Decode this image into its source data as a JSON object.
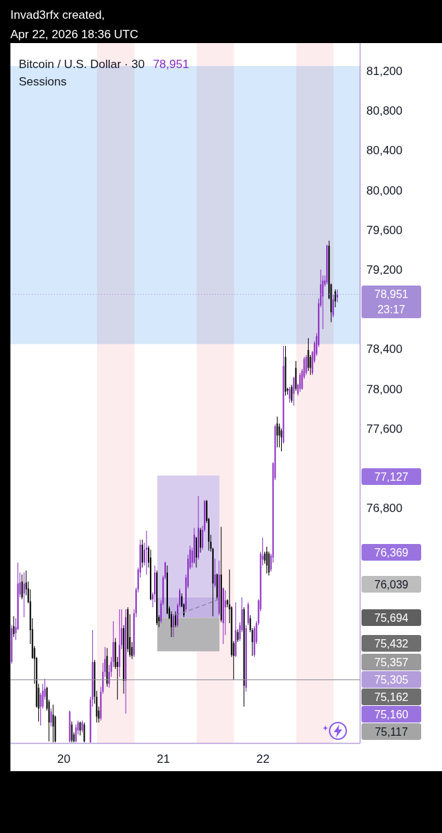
{
  "chart_data": {
    "type": "candlestick",
    "title": "Bitcoin / U.S. Dollar · 30",
    "subtitle": "Sessions",
    "annotations": [
      "Invad3rfx created,",
      "Apr 22, 2026 18:36 UTC",
      "78,951",
      "77,127",
      "76,369",
      "76,039",
      "75,694",
      "75,432",
      "75,357",
      "75,305",
      "75,162",
      "75,160",
      "75,117"
    ],
    "x": [
      "2026-04-19T11:30",
      "2026-04-19T12:00",
      "2026-04-19T12:30",
      "2026-04-19T13:00",
      "2026-04-19T13:30",
      "2026-04-19T14:00",
      "2026-04-19T14:30",
      "2026-04-19T15:00",
      "2026-04-19T15:30",
      "2026-04-19T16:00",
      "2026-04-19T16:30",
      "2026-04-19T17:00",
      "2026-04-19T17:30",
      "2026-04-19T18:00",
      "2026-04-19T18:30",
      "2026-04-19T19:00",
      "2026-04-19T19:30",
      "2026-04-19T20:00",
      "2026-04-19T20:30",
      "2026-04-19T21:00",
      "2026-04-19T21:30",
      "2026-04-19T22:00",
      "2026-04-20T01:30",
      "2026-04-20T02:00",
      "2026-04-20T02:30",
      "2026-04-20T03:00",
      "2026-04-20T03:30",
      "2026-04-20T04:00",
      "2026-04-20T04:30",
      "2026-04-20T05:00",
      "2026-04-20T06:30",
      "2026-04-20T07:00",
      "2026-04-20T07:30",
      "2026-04-20T08:00",
      "2026-04-20T08:30",
      "2026-04-20T09:00",
      "2026-04-20T09:30",
      "2026-04-20T10:00",
      "2026-04-20T10:30",
      "2026-04-20T11:00",
      "2026-04-20T11:30",
      "2026-04-20T12:00",
      "2026-04-20T12:30",
      "2026-04-20T13:00",
      "2026-04-20T13:30",
      "2026-04-20T14:00",
      "2026-04-20T14:30",
      "2026-04-20T15:00",
      "2026-04-20T15:30",
      "2026-04-20T16:00",
      "2026-04-20T16:30",
      "2026-04-20T17:00",
      "2026-04-20T17:30",
      "2026-04-20T18:00",
      "2026-04-20T18:30",
      "2026-04-20T19:00",
      "2026-04-20T19:30",
      "2026-04-20T20:00",
      "2026-04-20T20:30",
      "2026-04-20T21:00",
      "2026-04-20T21:30",
      "2026-04-20T22:00",
      "2026-04-20T22:30",
      "2026-04-20T23:00",
      "2026-04-20T23:30",
      "2026-04-21T00:00",
      "2026-04-21T00:30",
      "2026-04-21T01:00",
      "2026-04-21T01:30",
      "2026-04-21T02:00",
      "2026-04-21T02:30",
      "2026-04-21T03:00",
      "2026-04-21T03:30",
      "2026-04-21T04:00",
      "2026-04-21T04:30",
      "2026-04-21T05:00",
      "2026-04-21T05:30",
      "2026-04-21T06:00",
      "2026-04-21T06:30",
      "2026-04-21T07:00",
      "2026-04-21T07:30",
      "2026-04-21T08:00",
      "2026-04-21T08:30",
      "2026-04-21T09:00",
      "2026-04-21T09:30",
      "2026-04-21T10:00",
      "2026-04-21T10:30",
      "2026-04-21T11:00",
      "2026-04-21T11:30",
      "2026-04-21T12:00",
      "2026-04-21T12:30",
      "2026-04-21T13:00",
      "2026-04-21T13:30",
      "2026-04-21T14:00",
      "2026-04-21T14:30",
      "2026-04-21T15:00",
      "2026-04-21T15:30",
      "2026-04-21T16:00",
      "2026-04-21T16:30",
      "2026-04-21T17:00",
      "2026-04-21T17:30",
      "2026-04-21T18:00",
      "2026-04-21T18:30",
      "2026-04-21T19:00",
      "2026-04-21T19:30",
      "2026-04-21T20:00",
      "2026-04-21T20:30",
      "2026-04-21T21:00",
      "2026-04-21T21:30",
      "2026-04-21T22:00",
      "2026-04-21T22:30",
      "2026-04-21T23:00",
      "2026-04-21T23:30",
      "2026-04-22T00:00",
      "2026-04-22T00:30",
      "2026-04-22T01:00",
      "2026-04-22T01:30",
      "2026-04-22T02:00",
      "2026-04-22T02:30",
      "2026-04-22T03:00",
      "2026-04-22T03:30",
      "2026-04-22T04:00",
      "2026-04-22T04:30",
      "2026-04-22T05:00",
      "2026-04-22T05:30",
      "2026-04-22T06:00",
      "2026-04-22T06:30",
      "2026-04-22T07:00",
      "2026-04-22T07:30",
      "2026-04-22T08:00",
      "2026-04-22T08:30",
      "2026-04-22T09:00",
      "2026-04-22T09:30",
      "2026-04-22T10:00",
      "2026-04-22T10:30",
      "2026-04-22T11:00",
      "2026-04-22T11:30",
      "2026-04-22T12:00",
      "2026-04-22T12:30",
      "2026-04-22T13:00",
      "2026-04-22T13:30",
      "2026-04-22T14:00",
      "2026-04-22T14:30",
      "2026-04-22T15:00",
      "2026-04-22T15:30",
      "2026-04-22T16:00",
      "2026-04-22T16:30",
      "2026-04-22T17:00",
      "2026-04-22T17:30",
      "2026-04-22T18:00"
    ],
    "ohlc": [
      [
        75250,
        75620,
        75230,
        75590
      ],
      [
        75610,
        75710,
        75500,
        75530
      ],
      [
        75540,
        75690,
        75470,
        75600
      ],
      [
        75580,
        76250,
        75570,
        76040
      ],
      [
        75930,
        76150,
        75900,
        76050
      ],
      [
        76060,
        76130,
        75880,
        75900
      ],
      [
        75940,
        76150,
        75700,
        76040
      ],
      [
        76050,
        76170,
        75920,
        75980
      ],
      [
        75990,
        76060,
        75840,
        75850
      ],
      [
        75860,
        75980,
        75430,
        75570
      ],
      [
        75580,
        75690,
        75280,
        75290
      ],
      [
        75390,
        75410,
        75030,
        75280
      ],
      [
        75290,
        75300,
        74790,
        74800
      ],
      [
        74990,
        75030,
        74650,
        74780
      ],
      [
        74800,
        74940,
        74610,
        74920
      ],
      [
        74800,
        75030,
        74780,
        74960
      ],
      [
        74900,
        75080,
        74870,
        74980
      ],
      [
        74990,
        75000,
        74760,
        74780
      ],
      [
        74850,
        74870,
        74450,
        74640
      ],
      [
        74640,
        74780,
        74600,
        74750
      ],
      [
        74720,
        74820,
        74440,
        74600
      ],
      [
        74700,
        74710,
        74440,
        74450
      ],
      [
        74450,
        74760,
        74440,
        74750
      ],
      [
        74620,
        74650,
        74440,
        74460
      ],
      [
        74520,
        74540,
        74440,
        74450
      ],
      [
        74450,
        74620,
        74440,
        74590
      ],
      [
        74560,
        74660,
        74520,
        74640
      ],
      [
        74640,
        74650,
        74510,
        74560
      ],
      [
        74560,
        74660,
        74540,
        74640
      ],
      [
        74620,
        74640,
        74440,
        74450
      ],
      [
        74440,
        74900,
        74440,
        74870
      ],
      [
        74870,
        75570,
        74800,
        75250
      ],
      [
        75250,
        75270,
        74830,
        74900
      ],
      [
        74900,
        74960,
        74640,
        74700
      ],
      [
        74760,
        74800,
        74640,
        74680
      ],
      [
        74680,
        75000,
        74660,
        74950
      ],
      [
        74950,
        75240,
        74930,
        75150
      ],
      [
        75150,
        75400,
        75100,
        75280
      ],
      [
        75310,
        75390,
        75000,
        75030
      ],
      [
        75030,
        75220,
        74990,
        75150
      ],
      [
        75150,
        75300,
        75100,
        75250
      ],
      [
        75250,
        75660,
        75200,
        75450
      ],
      [
        75450,
        75490,
        75180,
        75200
      ],
      [
        75250,
        75300,
        74870,
        75200
      ],
      [
        75200,
        75780,
        75100,
        75420
      ],
      [
        75420,
        75780,
        75380,
        75590
      ],
      [
        75590,
        75620,
        74930,
        75060
      ],
      [
        75060,
        75780,
        74730,
        75700
      ],
      [
        75780,
        75800,
        75350,
        75380
      ],
      [
        75500,
        75730,
        75300,
        75320
      ],
      [
        75400,
        75450,
        75280,
        75310
      ],
      [
        75320,
        75780,
        75300,
        75740
      ],
      [
        75740,
        76000,
        75700,
        75980
      ],
      [
        75980,
        76200,
        75950,
        76180
      ],
      [
        76150,
        76480,
        76100,
        76430
      ],
      [
        76430,
        76480,
        76200,
        76250
      ],
      [
        76250,
        76450,
        76220,
        76380
      ],
      [
        76380,
        76570,
        76130,
        76400
      ],
      [
        76400,
        76420,
        76200,
        76250
      ],
      [
        76300,
        76380,
        75870,
        75880
      ],
      [
        75880,
        75950,
        75800,
        75930
      ],
      [
        75930,
        76220,
        75850,
        76150
      ],
      [
        76150,
        76170,
        75620,
        75640
      ],
      [
        75700,
        75720,
        75600,
        75660
      ],
      [
        75660,
        75870,
        75640,
        75840
      ],
      [
        75840,
        76120,
        75820,
        76100
      ],
      [
        76100,
        76260,
        76080,
        76250
      ],
      [
        76150,
        76220,
        75730,
        75740
      ],
      [
        75790,
        75810,
        75680,
        75690
      ],
      [
        75730,
        75760,
        75500,
        75600
      ],
      [
        75600,
        75730,
        75500,
        75710
      ],
      [
        75720,
        75760,
        75600,
        75620
      ],
      [
        75620,
        75840,
        75600,
        75820
      ],
      [
        75820,
        75990,
        75800,
        75970
      ],
      [
        75910,
        75940,
        75800,
        75810
      ],
      [
        75830,
        75840,
        75700,
        75720
      ],
      [
        75780,
        76130,
        75760,
        76100
      ],
      [
        76010,
        76330,
        75990,
        76290
      ],
      [
        76200,
        76420,
        76180,
        76380
      ],
      [
        76250,
        76400,
        76200,
        76370
      ],
      [
        76250,
        76600,
        76240,
        76530
      ],
      [
        76500,
        76510,
        76200,
        76300
      ],
      [
        76300,
        76920,
        76280,
        76600
      ],
      [
        76580,
        76600,
        76350,
        76400
      ],
      [
        76400,
        76620,
        76380,
        76580
      ],
      [
        76580,
        76880,
        76560,
        76870
      ],
      [
        76870,
        76880,
        76650,
        76670
      ],
      [
        76690,
        76700,
        76370,
        76460
      ],
      [
        76460,
        76530,
        76360,
        76390
      ],
      [
        76390,
        76400,
        75710,
        76040
      ],
      [
        76020,
        76290,
        76000,
        76130
      ],
      [
        76130,
        76140,
        75880,
        75900
      ],
      [
        75740,
        76270,
        75720,
        76130
      ],
      [
        76130,
        76610,
        75650,
        75670
      ],
      [
        75640,
        76000,
        75430,
        75990
      ],
      [
        75800,
        75970,
        75520,
        75870
      ],
      [
        75870,
        75880,
        75800,
        75830
      ],
      [
        75830,
        76180,
        75640,
        75780
      ],
      [
        75800,
        75810,
        75300,
        75320
      ],
      [
        75440,
        75460,
        75070,
        75310
      ],
      [
        75310,
        75850,
        75300,
        75570
      ],
      [
        75550,
        75580,
        75450,
        75470
      ],
      [
        75480,
        75650,
        75460,
        75620
      ],
      [
        75570,
        75900,
        75550,
        75780
      ],
      [
        75780,
        75800,
        74800,
        75010
      ],
      [
        74990,
        75620,
        74950,
        75590
      ],
      [
        75640,
        75850,
        75620,
        75830
      ],
      [
        75690,
        75720,
        75550,
        75570
      ],
      [
        75570,
        75590,
        75310,
        75450
      ],
      [
        75320,
        75610,
        75300,
        75590
      ],
      [
        75450,
        75660,
        75430,
        75640
      ],
      [
        75640,
        75880,
        75620,
        75870
      ],
      [
        75780,
        76360,
        75760,
        76340
      ],
      [
        76280,
        76500,
        76220,
        76320
      ],
      [
        76340,
        76360,
        76240,
        76270
      ],
      [
        76360,
        76410,
        76140,
        76220
      ],
      [
        76340,
        76360,
        76120,
        76150
      ],
      [
        76180,
        76340,
        76160,
        76320
      ],
      [
        76300,
        77260,
        76250,
        77250
      ],
      [
        77100,
        77640,
        77080,
        77620
      ],
      [
        77650,
        77720,
        77410,
        77530
      ],
      [
        77620,
        77650,
        77410,
        77530
      ],
      [
        77580,
        77600,
        77370,
        77510
      ],
      [
        77460,
        78430,
        77450,
        78230
      ],
      [
        78320,
        78430,
        77930,
        77970
      ],
      [
        78000,
        78010,
        77940,
        77980
      ],
      [
        77900,
        78020,
        77860,
        78000
      ],
      [
        78020,
        78040,
        77860,
        77880
      ],
      [
        77950,
        78120,
        77830,
        78110
      ],
      [
        78210,
        78280,
        77980,
        78000
      ],
      [
        77950,
        78050,
        77930,
        78040
      ],
      [
        78000,
        78160,
        77970,
        78140
      ],
      [
        78000,
        78200,
        77990,
        78180
      ],
      [
        78120,
        78320,
        78100,
        78300
      ],
      [
        78160,
        78340,
        78140,
        78320
      ],
      [
        78390,
        78510,
        78180,
        78210
      ],
      [
        78320,
        78340,
        78140,
        78210
      ],
      [
        78160,
        78380,
        78140,
        78370
      ],
      [
        78280,
        78480,
        78260,
        78460
      ],
      [
        78350,
        78560,
        78330,
        78530
      ],
      [
        78440,
        78910,
        78420,
        78860
      ],
      [
        78840,
        79200,
        78820,
        79050
      ],
      [
        78930,
        79140,
        78600,
        79090
      ],
      [
        79050,
        79140,
        79030,
        79090
      ],
      [
        79070,
        79450,
        79050,
        79440
      ],
      [
        79440,
        79490,
        78900,
        78910
      ],
      [
        79050,
        79060,
        78670,
        78770
      ],
      [
        78740,
        78950,
        78720,
        78900
      ],
      [
        78980,
        79000,
        78820,
        78880
      ],
      [
        78920,
        79000,
        78870,
        78951
      ]
    ],
    "colors": [
      "#8a2bc2",
      "#000000",
      "#8a2bc2",
      "#8a2bc2",
      "#8a2bc2",
      "#000000",
      "#8a2bc2",
      "#000000",
      "#000000",
      "#000000",
      "#000000",
      "#000000",
      "#000000",
      "#000000",
      "#8a2bc2",
      "#8a2bc2",
      "#8a2bc2",
      "#000000",
      "#000000",
      "#8a2bc2",
      "#000000",
      "#000000",
      "#8a2bc2",
      "#000000",
      "#000000",
      "#8a2bc2",
      "#8a2bc2",
      "#000000",
      "#8a2bc2",
      "#000000",
      "#8a2bc2",
      "#8a2bc2",
      "#000000",
      "#000000",
      "#000000",
      "#8a2bc2",
      "#8a2bc2",
      "#8a2bc2",
      "#000000",
      "#8a2bc2",
      "#8a2bc2",
      "#8a2bc2",
      "#000000",
      "#000000",
      "#8a2bc2",
      "#8a2bc2",
      "#000000",
      "#8a2bc2",
      "#000000",
      "#000000",
      "#000000",
      "#8a2bc2",
      "#8a2bc2",
      "#8a2bc2",
      "#8a2bc2",
      "#000000",
      "#8a2bc2",
      "#8a2bc2",
      "#000000",
      "#000000",
      "#8a2bc2",
      "#8a2bc2",
      "#000000",
      "#000000",
      "#8a2bc2",
      "#8a2bc2",
      "#8a2bc2",
      "#000000",
      "#000000",
      "#000000",
      "#8a2bc2",
      "#000000",
      "#8a2bc2",
      "#8a2bc2",
      "#000000",
      "#000000",
      "#8a2bc2",
      "#8a2bc2",
      "#8a2bc2",
      "#8a2bc2",
      "#8a2bc2",
      "#000000",
      "#8a2bc2",
      "#000000",
      "#8a2bc2",
      "#8a2bc2",
      "#000000",
      "#000000",
      "#000000",
      "#000000",
      "#8a2bc2",
      "#000000",
      "#8a2bc2",
      "#000000",
      "#8a2bc2",
      "#8a2bc2",
      "#000000",
      "#000000",
      "#000000",
      "#000000",
      "#8a2bc2",
      "#000000",
      "#8a2bc2",
      "#8a2bc2",
      "#000000",
      "#8a2bc2",
      "#8a2bc2",
      "#000000",
      "#000000",
      "#8a2bc2",
      "#8a2bc2",
      "#8a2bc2",
      "#8a2bc2",
      "#8a2bc2",
      "#000000",
      "#000000",
      "#000000",
      "#8a2bc2",
      "#8a2bc2",
      "#8a2bc2",
      "#000000",
      "#000000",
      "#000000",
      "#8a2bc2",
      "#000000",
      "#000000",
      "#8a2bc2",
      "#000000",
      "#8a2bc2",
      "#000000",
      "#8a2bc2",
      "#8a2bc2",
      "#8a2bc2",
      "#8a2bc2",
      "#8a2bc2",
      "#000000",
      "#000000",
      "#8a2bc2",
      "#8a2bc2",
      "#8a2bc2",
      "#8a2bc2",
      "#8a2bc2",
      "#8a2bc2",
      "#8a2bc2",
      "#8a2bc2",
      "#000000",
      "#000000",
      "#8a2bc2",
      "#000000",
      "#8a2bc2"
    ],
    "series": [
      {
        "type": "area",
        "color": "#d8ccee",
        "x": [
          "2026-04-20T22:30",
          "2026-04-21T13:30"
        ],
        "values": [
          null,
          null
        ],
        "lower": [
          75900,
          75900
        ],
        "upper": [
          77127,
          77127
        ]
      },
      {
        "type": "area",
        "color": "#c3b3e4",
        "x": [
          "2026-04-20T22:30",
          "2026-04-21T13:30"
        ],
        "values": [
          null,
          null
        ],
        "lower": [
          75694,
          75694
        ],
        "upper": [
          75900,
          75900
        ]
      },
      {
        "type": "area",
        "color": "#b4b4b6",
        "x": [
          "2026-04-20T22:30",
          "2026-04-21T13:30"
        ],
        "values": [
          null,
          null
        ],
        "lower": [
          75357,
          75357
        ],
        "upper": [
          75694,
          75694
        ]
      },
      {
        "type": "line",
        "color": "#8d84a6",
        "line_style": "dashed",
        "x": [
          "2026-04-21T03:00",
          "2026-04-21T13:30"
        ],
        "values": [
          75720,
          75880
        ]
      }
    ],
    "xlim": [
      "2026-04-19T11:07",
      "2026-04-22T23:24"
    ],
    "xticks": [
      {
        "value": "2026-04-20",
        "label": "20"
      },
      {
        "value": "2026-04-21",
        "label": "21"
      },
      {
        "value": "2026-04-22",
        "label": "22"
      }
    ],
    "ylim": [
      74430,
      81480
    ],
    "yticks": [
      {
        "value": 76800,
        "label": "76,800"
      },
      {
        "value": 77600,
        "label": "77,600"
      },
      {
        "value": 78000,
        "label": "78,000"
      },
      {
        "value": 78400,
        "label": "78,400"
      },
      {
        "value": 79200,
        "label": "79,200"
      },
      {
        "value": 79600,
        "label": "79,600"
      },
      {
        "value": 80000,
        "label": "80,000"
      },
      {
        "value": 80400,
        "label": "80,400"
      },
      {
        "value": 80800,
        "label": "80,800"
      },
      {
        "value": 81200,
        "label": "81,200"
      }
    ],
    "ref_lines": [
      {
        "axis": "y",
        "value": 78951,
        "label": "78,951\n23:17",
        "color": "#a68dd8",
        "line_style": "dotted"
      },
      {
        "axis": "y",
        "value": 75070,
        "color": "#8a8c94",
        "line_style": "solid"
      }
    ],
    "bands": [
      {
        "axis": "y",
        "from": 78450,
        "to": 81250,
        "color": "#d6e8fb"
      },
      {
        "axis": "x",
        "from": "2026-04-20T08:00",
        "to": "2026-04-20T17:00",
        "color": "#fdecee"
      },
      {
        "axis": "x",
        "from": "2026-04-21T08:00",
        "to": "2026-04-21T17:00",
        "color": "#fdecee"
      },
      {
        "axis": "x",
        "from": "2026-04-22T08:00",
        "to": "2026-04-22T17:00",
        "color": "#fdecee"
      }
    ]
  }
}
